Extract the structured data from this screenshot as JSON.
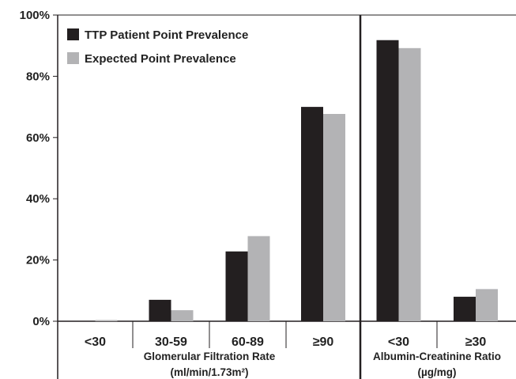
{
  "colors": {
    "series_patient": "#231f20",
    "series_expected": "#b3b3b5",
    "axis": "#231f20"
  },
  "chart_data": {
    "type": "bar",
    "ylim": [
      0,
      100
    ],
    "yticks": [
      0,
      20,
      40,
      60,
      80,
      100
    ],
    "ytick_labels": [
      "0%",
      "20%",
      "40%",
      "60%",
      "80%",
      "100%"
    ],
    "grid": false,
    "legend_position": "top-left",
    "categories": [
      "<30",
      "30-59",
      "60-89",
      "≥90",
      "<30",
      "≥30"
    ],
    "groups": [
      {
        "label_line1": "Glomerular Filtration Rate",
        "label_line2": "(ml/min/1.73m²)",
        "categories": [
          "<30",
          "30-59",
          "60-89",
          "≥90"
        ]
      },
      {
        "label_line1": "Albumin-Creatinine Ratio",
        "label_line2": "(µg/mg)",
        "categories": [
          "<30",
          "≥30"
        ]
      }
    ],
    "series": [
      {
        "name": "TTP Patient Point Prevalence",
        "values": [
          0,
          7,
          22.8,
          70,
          91.8,
          8
        ]
      },
      {
        "name": "Expected Point Prevalence",
        "values": [
          0.4,
          3.6,
          27.8,
          67.7,
          89.2,
          10.5
        ]
      }
    ]
  }
}
